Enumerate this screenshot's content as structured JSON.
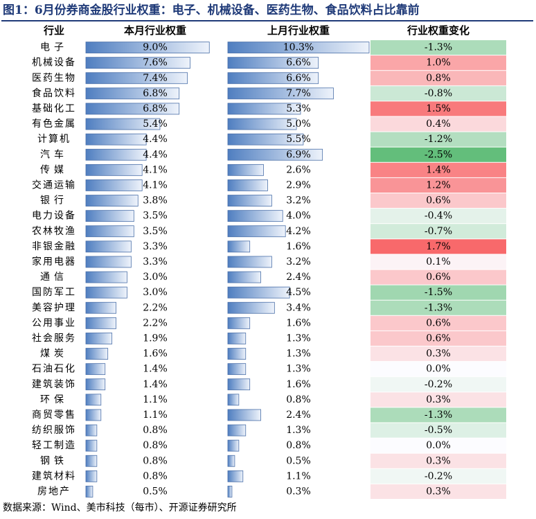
{
  "title": "图1：6月份券商金股行业权重：电子、机械设备、医药生物、食品饮料占比靠前",
  "source": "数据来源：Wind、美市科技（每市）、开源证券研究所",
  "colors": {
    "title": "#1f3a78",
    "bar_dark": "#4f7ec0",
    "bar_light": "#eef3fb",
    "bar_border": "#4a6fa8",
    "change_positive": "#f8696b",
    "change_negative": "#63be7b",
    "change_neutral": "#fcfcff"
  },
  "chart_data": {
    "type": "table",
    "columns": [
      "行业",
      "本月行业权重",
      "上月行业权重",
      "行业权重变化"
    ],
    "categories": [
      "电子",
      "机械设备",
      "医药生物",
      "食品饮料",
      "基础化工",
      "有色金属",
      "计算机",
      "汽车",
      "传媒",
      "交通运输",
      "银行",
      "电力设备",
      "农林牧渔",
      "非银金融",
      "家用电器",
      "通信",
      "国防军工",
      "美容护理",
      "公用事业",
      "社会服务",
      "煤炭",
      "石油石化",
      "建筑装饰",
      "环保",
      "商贸零售",
      "纺织服饰",
      "轻工制造",
      "钢铁",
      "建筑材料",
      "房地产"
    ],
    "series": [
      {
        "name": "本月行业权重",
        "unit": "%",
        "values": [
          9.0,
          7.6,
          7.4,
          6.8,
          6.8,
          5.4,
          4.4,
          4.4,
          4.1,
          4.1,
          3.8,
          3.5,
          3.5,
          3.3,
          3.3,
          3.0,
          3.0,
          2.2,
          2.2,
          1.9,
          1.6,
          1.4,
          1.4,
          1.1,
          1.1,
          0.8,
          0.8,
          0.8,
          0.8,
          0.5
        ]
      },
      {
        "name": "上月行业权重",
        "unit": "%",
        "values": [
          10.3,
          6.6,
          6.6,
          7.7,
          5.3,
          5.0,
          5.5,
          6.9,
          2.6,
          2.9,
          3.2,
          4.0,
          4.2,
          1.6,
          3.2,
          2.4,
          4.5,
          3.4,
          1.6,
          1.3,
          1.3,
          1.3,
          1.6,
          0.8,
          2.4,
          1.3,
          0.8,
          0.5,
          1.1,
          0.3
        ]
      },
      {
        "name": "行业权重变化",
        "unit": "%",
        "values": [
          -1.3,
          1.0,
          0.8,
          -0.8,
          1.5,
          0.4,
          -1.2,
          -2.5,
          1.4,
          1.2,
          0.6,
          -0.4,
          -0.7,
          1.7,
          0.1,
          0.6,
          -1.5,
          -1.3,
          0.6,
          0.6,
          0.3,
          0.0,
          -0.2,
          0.3,
          -1.3,
          -0.5,
          0.0,
          0.3,
          -0.2,
          0.3
        ]
      }
    ],
    "bar_scale_max": 10.3,
    "change_scale": [
      -2.5,
      1.7
    ]
  }
}
